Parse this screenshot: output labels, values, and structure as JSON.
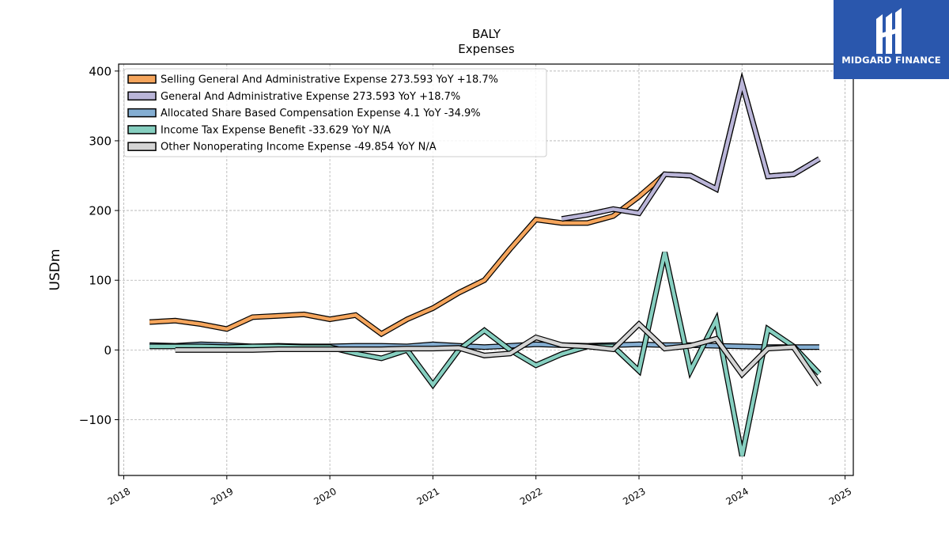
{
  "chart_data": {
    "type": "line",
    "title": "BALY",
    "subtitle": "Expenses",
    "ylabel": "USDm",
    "xlabel": "",
    "xlim": [
      2017.95,
      2025.08
    ],
    "ylim": [
      -180,
      410
    ],
    "x_ticks": [
      2018,
      2019,
      2020,
      2021,
      2022,
      2023,
      2024,
      2025
    ],
    "y_ticks": [
      -100,
      0,
      100,
      200,
      300,
      400
    ],
    "y_tick_labels": [
      "−100",
      "0",
      "100",
      "200",
      "300",
      "400"
    ],
    "grid": true,
    "legend_position": "top-left",
    "series": [
      {
        "name": "Selling General And Administrative Expense",
        "legend": "Selling General And Administrative Expense  273.593 YoY +18.7%",
        "color": "#f5a55c",
        "points": [
          [
            2018.25,
            40
          ],
          [
            2018.5,
            42
          ],
          [
            2018.75,
            37
          ],
          [
            2019.0,
            30
          ],
          [
            2019.25,
            47
          ],
          [
            2019.5,
            49
          ],
          [
            2019.75,
            51
          ],
          [
            2020.0,
            44
          ],
          [
            2020.25,
            50
          ],
          [
            2020.5,
            23
          ],
          [
            2020.75,
            44
          ],
          [
            2021.0,
            60
          ],
          [
            2021.25,
            82
          ],
          [
            2021.5,
            100
          ],
          [
            2021.75,
            145
          ],
          [
            2022.0,
            187
          ],
          [
            2022.25,
            182
          ],
          [
            2022.5,
            182
          ],
          [
            2022.75,
            192
          ],
          [
            2023.0,
            220
          ],
          [
            2023.25,
            252
          ],
          [
            2023.5,
            250
          ],
          [
            2023.75,
            231
          ],
          [
            2024.0,
            383
          ],
          [
            2024.25,
            249
          ],
          [
            2024.5,
            252
          ],
          [
            2024.75,
            274
          ]
        ]
      },
      {
        "name": "General And Administrative Expense",
        "legend": "General And Administrative Expense  273.593 YoY +18.7%",
        "color": "#bab5d8",
        "points": [
          [
            2022.25,
            188
          ],
          [
            2022.5,
            194
          ],
          [
            2022.75,
            202
          ],
          [
            2023.0,
            196
          ],
          [
            2023.25,
            252
          ],
          [
            2023.5,
            250
          ],
          [
            2023.75,
            231
          ],
          [
            2024.0,
            383
          ],
          [
            2024.25,
            249
          ],
          [
            2024.5,
            252
          ],
          [
            2024.75,
            274
          ]
        ]
      },
      {
        "name": "Allocated Share Based Compensation Expense",
        "legend": "Allocated Share Based Compensation Expense  4.1 YoY -34.9%",
        "color": "#84aed2",
        "points": [
          [
            2018.25,
            7
          ],
          [
            2018.5,
            6
          ],
          [
            2018.75,
            8
          ],
          [
            2019.0,
            7
          ],
          [
            2019.25,
            5
          ],
          [
            2019.5,
            6
          ],
          [
            2019.75,
            5
          ],
          [
            2020.0,
            5
          ],
          [
            2020.25,
            6
          ],
          [
            2020.5,
            6
          ],
          [
            2020.75,
            5
          ],
          [
            2021.0,
            8
          ],
          [
            2021.25,
            6
          ],
          [
            2021.5,
            4
          ],
          [
            2021.75,
            6
          ],
          [
            2022.0,
            8
          ],
          [
            2022.25,
            7
          ],
          [
            2022.5,
            6
          ],
          [
            2022.75,
            7
          ],
          [
            2023.0,
            8
          ],
          [
            2023.25,
            7
          ],
          [
            2023.5,
            7
          ],
          [
            2023.75,
            6
          ],
          [
            2024.0,
            5
          ],
          [
            2024.25,
            4
          ],
          [
            2024.5,
            4
          ],
          [
            2024.75,
            4
          ]
        ]
      },
      {
        "name": "Income Tax Expense Benefit",
        "legend": "Income Tax Expense Benefit  -33.629 YoY N/A",
        "color": "#86cfc0",
        "points": [
          [
            2018.25,
            5
          ],
          [
            2018.5,
            5
          ],
          [
            2018.75,
            5
          ],
          [
            2019.0,
            4
          ],
          [
            2019.25,
            5
          ],
          [
            2019.5,
            5
          ],
          [
            2019.75,
            4
          ],
          [
            2020.0,
            4
          ],
          [
            2020.25,
            -5
          ],
          [
            2020.5,
            -12
          ],
          [
            2020.75,
            0
          ],
          [
            2021.0,
            -50
          ],
          [
            2021.25,
            0
          ],
          [
            2021.5,
            28
          ],
          [
            2021.75,
            0
          ],
          [
            2022.0,
            -22
          ],
          [
            2022.25,
            -6
          ],
          [
            2022.5,
            5
          ],
          [
            2022.75,
            5
          ],
          [
            2023.0,
            -30
          ],
          [
            2023.25,
            140
          ],
          [
            2023.5,
            -30
          ],
          [
            2023.75,
            43
          ],
          [
            2024.0,
            -152
          ],
          [
            2024.25,
            30
          ],
          [
            2024.5,
            5
          ],
          [
            2024.75,
            -34
          ]
        ]
      },
      {
        "name": "Other Nonoperating Income Expense",
        "legend": "Other Nonoperating Income Expense  -49.854 YoY N/A",
        "color": "#d4d4d4",
        "points": [
          [
            2018.5,
            0
          ],
          [
            2018.75,
            0
          ],
          [
            2019.0,
            0
          ],
          [
            2019.25,
            0
          ],
          [
            2019.5,
            1
          ],
          [
            2019.75,
            1
          ],
          [
            2020.0,
            1
          ],
          [
            2020.25,
            1
          ],
          [
            2020.5,
            1
          ],
          [
            2020.75,
            2
          ],
          [
            2021.0,
            2
          ],
          [
            2021.25,
            3
          ],
          [
            2021.5,
            -8
          ],
          [
            2021.75,
            -5
          ],
          [
            2022.0,
            18
          ],
          [
            2022.25,
            7
          ],
          [
            2022.5,
            5
          ],
          [
            2022.75,
            1
          ],
          [
            2023.0,
            37
          ],
          [
            2023.25,
            2
          ],
          [
            2023.5,
            6
          ],
          [
            2023.75,
            16
          ],
          [
            2024.0,
            -35
          ],
          [
            2024.25,
            2
          ],
          [
            2024.5,
            4
          ],
          [
            2024.75,
            -50
          ]
        ]
      }
    ]
  },
  "brand": {
    "name": "MIDGARD FINANCE",
    "logo_icon": "midgard-logo-icon",
    "background": "#2a57ad"
  }
}
